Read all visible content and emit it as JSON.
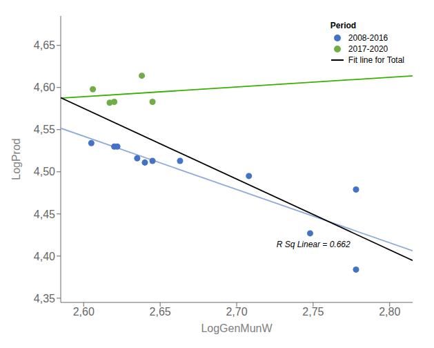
{
  "chart_data": {
    "type": "scatter",
    "x_label": "LogGenMunW",
    "y_label": "LogProd",
    "legend": "upper right",
    "legend_title": "Period",
    "grid": false,
    "xlim": [
      2.585,
      2.815
    ],
    "ylim": [
      4.345,
      4.685
    ],
    "xticks": [
      {
        "value": 2.6,
        "label": "2,60"
      },
      {
        "value": 2.65,
        "label": "2,65"
      },
      {
        "value": 2.7,
        "label": "2,70"
      },
      {
        "value": 2.75,
        "label": "2,75"
      },
      {
        "value": 2.8,
        "label": "2,80"
      }
    ],
    "yticks": [
      {
        "value": 4.35,
        "label": "4,35"
      },
      {
        "value": 4.4,
        "label": "4,40"
      },
      {
        "value": 4.45,
        "label": "4,45"
      },
      {
        "value": 4.5,
        "label": "4,50"
      },
      {
        "value": 4.55,
        "label": "4,55"
      },
      {
        "value": 4.6,
        "label": "4,60"
      },
      {
        "value": 4.65,
        "label": "4,65"
      }
    ],
    "annotations": [
      {
        "text": "R Sq Linear = 0.662",
        "x": 2.726,
        "y": 4.413
      }
    ],
    "series": [
      {
        "name": "2008-2016",
        "type": "scatter",
        "color": "#4472C4",
        "x": [
          2.605,
          2.62,
          2.622,
          2.635,
          2.64,
          2.645,
          2.663,
          2.708,
          2.748,
          2.778,
          2.778
        ],
        "values": [
          4.534,
          4.53,
          4.53,
          4.516,
          4.511,
          4.513,
          4.513,
          4.495,
          4.427,
          4.479,
          4.384
        ]
      },
      {
        "name": "2017-2020",
        "type": "scatter",
        "color": "#70AD47",
        "x": [
          2.606,
          2.617,
          2.62,
          2.638,
          2.645
        ],
        "values": [
          4.598,
          4.582,
          4.583,
          4.614,
          4.583
        ]
      },
      {
        "type": "line",
        "color": "#8EA9DB",
        "x": [
          2.585,
          2.815
        ],
        "values": [
          4.5517,
          4.4063
        ]
      },
      {
        "type": "line",
        "color": "#38B000",
        "x": [
          2.585,
          2.815
        ],
        "values": [
          4.5874,
          4.6138
        ]
      },
      {
        "name": "Fit line for Total",
        "type": "line",
        "color": "#000000",
        "x": [
          2.585,
          2.815
        ],
        "values": [
          4.5879,
          4.3948
        ]
      }
    ]
  }
}
